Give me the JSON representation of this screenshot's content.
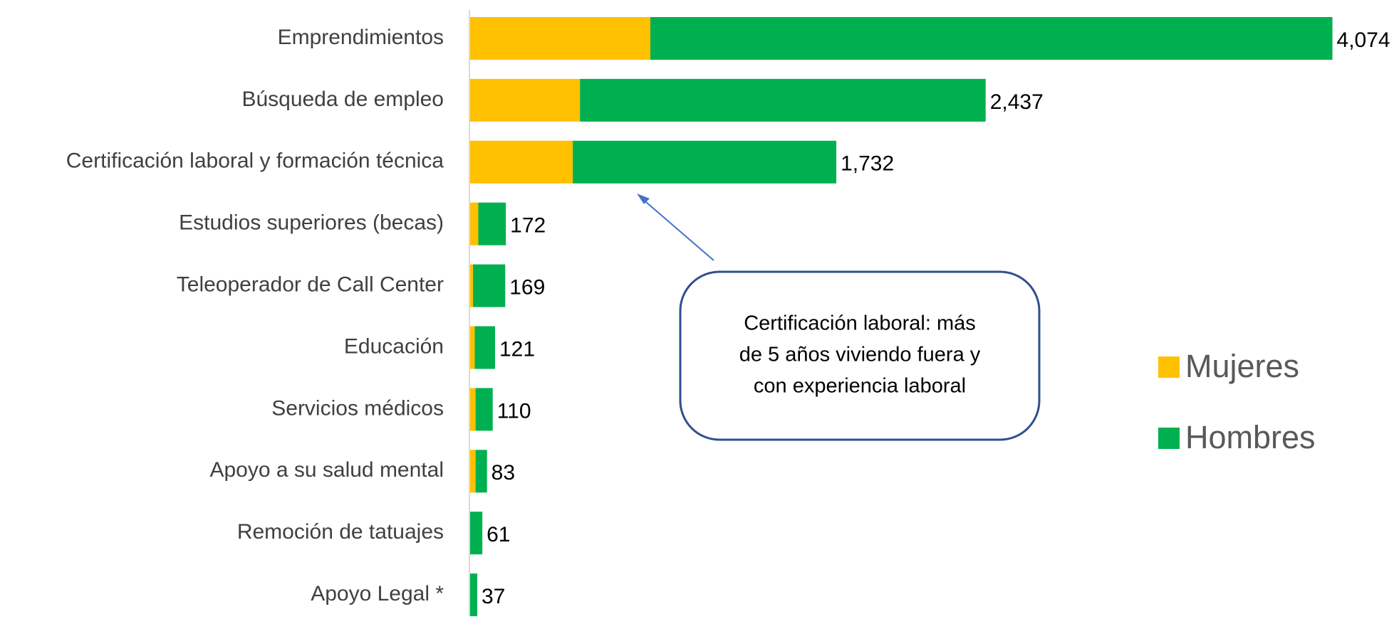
{
  "chart_data": {
    "type": "stacked_barh",
    "categories": [
      "Emprendimientos",
      "Búsqueda de empleo",
      "Certificación laboral y formación técnica",
      "Estudios superiores (becas)",
      "Teleoperador de Call Center",
      "Educación",
      "Servicios médicos",
      "Apoyo a su salud mental",
      "Remoción de tatuajes",
      "Apoyo Legal *"
    ],
    "series": [
      {
        "name": "Mujeres",
        "color": "#ffc000",
        "values": [
          854,
          522,
          488,
          42,
          17,
          25,
          29,
          29,
          0,
          0
        ]
      },
      {
        "name": "Hombres",
        "color": "#00b050",
        "values": [
          3220,
          1915,
          1244,
          130,
          152,
          96,
          81,
          54,
          61,
          37
        ]
      }
    ],
    "totals": [
      4074,
      2437,
      1732,
      172,
      169,
      121,
      110,
      83,
      61,
      37
    ],
    "total_labels": [
      "4,074",
      "2,437",
      "1,732",
      "172",
      "169",
      "121",
      "110",
      "83",
      "61",
      "37"
    ],
    "xlim": [
      0,
      4200
    ],
    "legend": "right",
    "annotation": {
      "lines": [
        "Certificación laboral: más",
        "de 5 años viviendo fuera y",
        "con experiencia laboral"
      ]
    }
  }
}
